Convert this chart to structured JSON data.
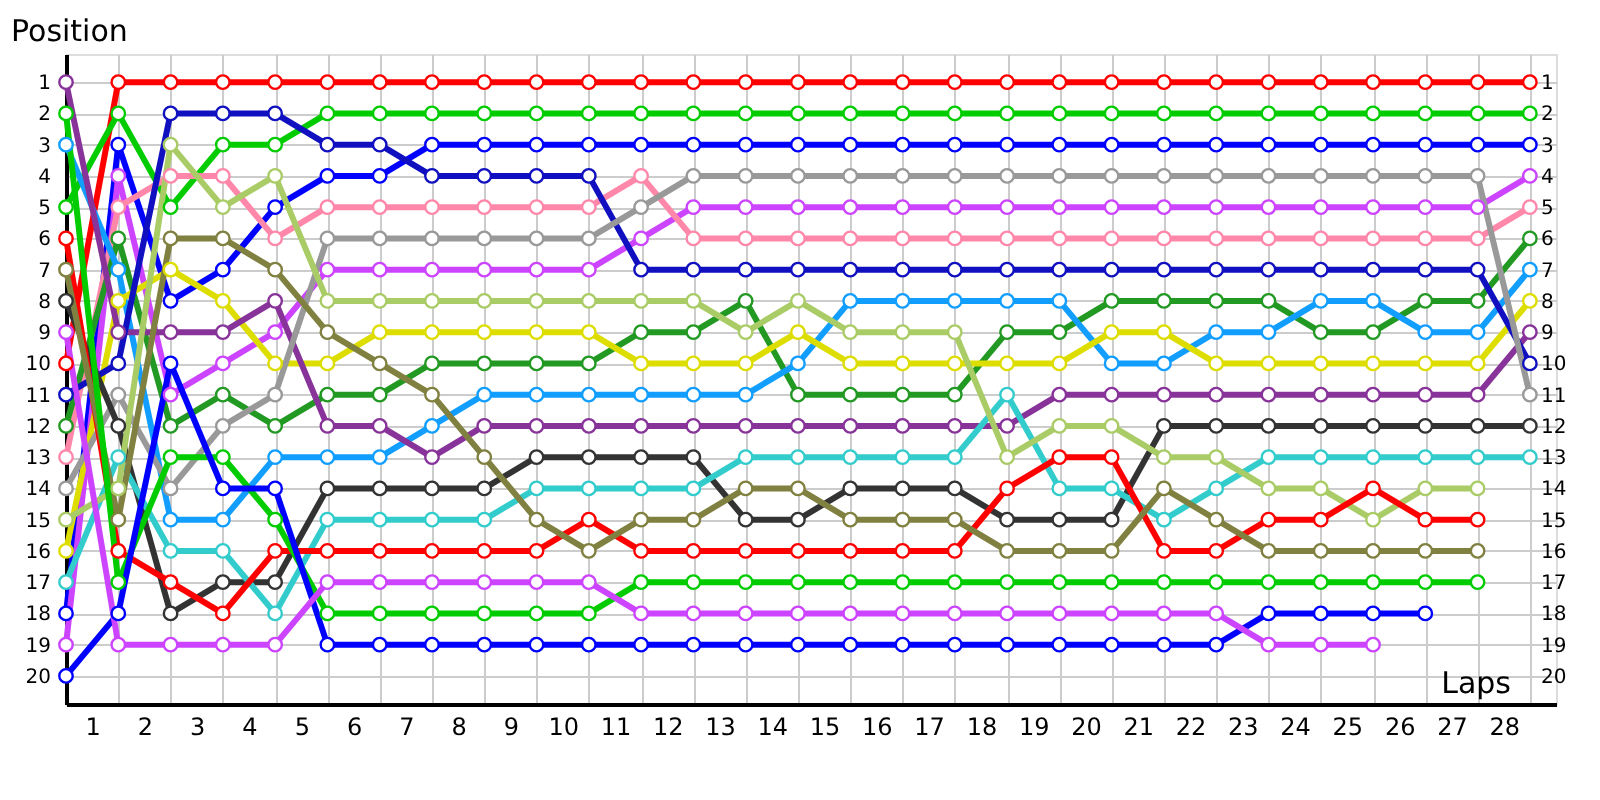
{
  "chart_data": {
    "type": "line",
    "xlabel": "Laps",
    "ylabel": "Position",
    "grid": true,
    "legend": false,
    "marker": "circle",
    "line_style": "solid",
    "x": [
      0,
      1,
      2,
      3,
      4,
      5,
      6,
      7,
      8,
      9,
      10,
      11,
      12,
      13,
      14,
      15,
      16,
      17,
      18,
      19,
      20,
      21,
      22,
      23,
      24,
      25,
      26,
      27,
      28
    ],
    "xlim": [
      0,
      28.5
    ],
    "ylim": [
      20.9,
      0.1
    ],
    "y2lim": [
      20.9,
      0.1
    ],
    "xticks": [
      {
        "value": 0,
        "label": null
      },
      {
        "value": 0.5,
        "label": "1"
      },
      {
        "value": 1,
        "label": null
      },
      {
        "value": 1.5,
        "label": "2"
      },
      {
        "value": 2,
        "label": null
      },
      {
        "value": 2.5,
        "label": "3"
      },
      {
        "value": 3,
        "label": null
      },
      {
        "value": 3.5,
        "label": "4"
      },
      {
        "value": 4,
        "label": null
      },
      {
        "value": 4.5,
        "label": "5"
      },
      {
        "value": 5,
        "label": null
      },
      {
        "value": 5.5,
        "label": "6"
      },
      {
        "value": 6,
        "label": null
      },
      {
        "value": 6.5,
        "label": "7"
      },
      {
        "value": 7,
        "label": null
      },
      {
        "value": 7.5,
        "label": "8"
      },
      {
        "value": 8,
        "label": null
      },
      {
        "value": 8.5,
        "label": "9"
      },
      {
        "value": 9,
        "label": null
      },
      {
        "value": 9.5,
        "label": "10"
      },
      {
        "value": 10,
        "label": null
      },
      {
        "value": 10.5,
        "label": "11"
      },
      {
        "value": 11,
        "label": null
      },
      {
        "value": 11.5,
        "label": "12"
      },
      {
        "value": 12,
        "label": null
      },
      {
        "value": 12.5,
        "label": "13"
      },
      {
        "value": 13,
        "label": null
      },
      {
        "value": 13.5,
        "label": "14"
      },
      {
        "value": 14,
        "label": null
      },
      {
        "value": 14.5,
        "label": "15"
      },
      {
        "value": 15,
        "label": null
      },
      {
        "value": 15.5,
        "label": "16"
      },
      {
        "value": 16,
        "label": null
      },
      {
        "value": 16.5,
        "label": "17"
      },
      {
        "value": 17,
        "label": null
      },
      {
        "value": 17.5,
        "label": "18"
      },
      {
        "value": 18,
        "label": null
      },
      {
        "value": 18.5,
        "label": "19"
      },
      {
        "value": 19,
        "label": null
      },
      {
        "value": 19.5,
        "label": "20"
      },
      {
        "value": 20,
        "label": null
      },
      {
        "value": 20.5,
        "label": "21"
      },
      {
        "value": 21,
        "label": null
      },
      {
        "value": 21.5,
        "label": "22"
      },
      {
        "value": 22,
        "label": null
      },
      {
        "value": 22.5,
        "label": "23"
      },
      {
        "value": 23,
        "label": null
      },
      {
        "value": 23.5,
        "label": "24"
      },
      {
        "value": 24,
        "label": null
      },
      {
        "value": 24.5,
        "label": "25"
      },
      {
        "value": 25,
        "label": null
      },
      {
        "value": 25.5,
        "label": "26"
      },
      {
        "value": 26,
        "label": null
      },
      {
        "value": 26.5,
        "label": "27"
      },
      {
        "value": 27,
        "label": null
      },
      {
        "value": 27.5,
        "label": "28"
      },
      {
        "value": 28,
        "label": null
      }
    ],
    "yticks": [
      1,
      2,
      3,
      4,
      5,
      6,
      7,
      8,
      9,
      10,
      11,
      12,
      13,
      14,
      15,
      16,
      17,
      18,
      19,
      20
    ],
    "y2ticks": [
      1,
      2,
      3,
      4,
      5,
      6,
      7,
      8,
      9,
      10,
      11,
      12,
      13,
      14,
      15,
      16,
      17,
      18,
      19,
      20
    ],
    "series": [
      {
        "color": "#ff0000",
        "values": [
          10,
          1,
          1,
          1,
          1,
          1,
          1,
          1,
          1,
          1,
          1,
          1,
          1,
          1,
          1,
          1,
          1,
          1,
          1,
          1,
          1,
          1,
          1,
          1,
          1,
          1,
          1,
          1,
          1
        ]
      },
      {
        "color": "#00cc00",
        "values": [
          5,
          2,
          5,
          3,
          3,
          2,
          2,
          2,
          2,
          2,
          2,
          2,
          2,
          2,
          2,
          2,
          2,
          2,
          2,
          2,
          2,
          2,
          2,
          2,
          2,
          2,
          2,
          2,
          2
        ]
      },
      {
        "color": "#0000ff",
        "values": [
          18,
          3,
          8,
          7,
          5,
          4,
          4,
          3,
          3,
          3,
          3,
          3,
          3,
          3,
          3,
          3,
          3,
          3,
          3,
          3,
          3,
          3,
          3,
          3,
          3,
          3,
          3,
          3,
          3
        ]
      },
      {
        "color": "#cc44ff",
        "values": [
          19,
          4,
          11,
          10,
          9,
          7,
          7,
          7,
          7,
          7,
          7,
          6,
          5,
          5,
          5,
          5,
          5,
          5,
          5,
          5,
          5,
          5,
          5,
          5,
          5,
          5,
          5,
          5,
          4
        ]
      },
      {
        "color": "#ff88aa",
        "values": [
          13,
          5,
          4,
          4,
          6,
          5,
          5,
          5,
          5,
          5,
          5,
          4,
          6,
          6,
          6,
          6,
          6,
          6,
          6,
          6,
          6,
          6,
          6,
          6,
          6,
          6,
          6,
          6,
          5
        ]
      },
      {
        "color": "#229922",
        "values": [
          12,
          6,
          12,
          11,
          12,
          11,
          11,
          10,
          10,
          10,
          10,
          9,
          9,
          8,
          11,
          11,
          11,
          11,
          9,
          9,
          8,
          8,
          8,
          8,
          9,
          9,
          8,
          8,
          6
        ]
      },
      {
        "color": "#119eff",
        "values": [
          3,
          7,
          15,
          15,
          13,
          13,
          13,
          12,
          11,
          11,
          11,
          11,
          11,
          11,
          10,
          8,
          8,
          8,
          8,
          8,
          10,
          10,
          9,
          9,
          8,
          8,
          9,
          9,
          7
        ]
      },
      {
        "color": "#dddd00",
        "values": [
          16,
          8,
          7,
          8,
          10,
          10,
          9,
          9,
          9,
          9,
          9,
          10,
          10,
          10,
          9,
          10,
          10,
          10,
          10,
          10,
          9,
          9,
          10,
          10,
          10,
          10,
          10,
          10,
          8
        ]
      },
      {
        "color": "#883399",
        "values": [
          1,
          9,
          9,
          9,
          8,
          12,
          12,
          13,
          12,
          12,
          12,
          12,
          12,
          12,
          12,
          12,
          12,
          12,
          12,
          11,
          11,
          11,
          11,
          11,
          11,
          11,
          11,
          11,
          9
        ]
      },
      {
        "color": "#1010c0",
        "values": [
          11,
          10,
          2,
          2,
          2,
          3,
          3,
          4,
          4,
          4,
          4,
          7,
          7,
          7,
          7,
          7,
          7,
          7,
          7,
          7,
          7,
          7,
          7,
          7,
          7,
          7,
          7,
          7,
          10
        ]
      },
      {
        "color": "#999999",
        "values": [
          14,
          11,
          14,
          12,
          11,
          6,
          6,
          6,
          6,
          6,
          6,
          5,
          4,
          4,
          4,
          4,
          4,
          4,
          4,
          4,
          4,
          4,
          4,
          4,
          4,
          4,
          4,
          4,
          11
        ]
      },
      {
        "color": "#333333",
        "values": [
          8,
          12,
          18,
          17,
          17,
          14,
          14,
          14,
          14,
          13,
          13,
          13,
          13,
          15,
          15,
          14,
          14,
          14,
          15,
          15,
          15,
          12,
          12,
          12,
          12,
          12,
          12,
          12,
          12
        ]
      },
      {
        "color": "#33cccc",
        "values": [
          17,
          13,
          16,
          16,
          18,
          15,
          15,
          15,
          15,
          14,
          14,
          14,
          14,
          13,
          13,
          13,
          13,
          13,
          11,
          14,
          14,
          15,
          14,
          13,
          13,
          13,
          13,
          13,
          13
        ]
      },
      {
        "color": "#aacc66",
        "values": [
          15,
          14,
          3,
          5,
          4,
          8,
          8,
          8,
          8,
          8,
          8,
          8,
          8,
          9,
          8,
          9,
          9,
          9,
          13,
          12,
          12,
          13,
          13,
          14,
          14,
          15,
          14,
          14,
          null
        ]
      },
      {
        "color": "#ff0000",
        "values": [
          6,
          16,
          17,
          18,
          16,
          16,
          16,
          16,
          16,
          16,
          15,
          16,
          16,
          16,
          16,
          16,
          16,
          16,
          14,
          13,
          13,
          16,
          16,
          15,
          15,
          14,
          15,
          15,
          null
        ]
      },
      {
        "color": "#808040",
        "values": [
          7,
          15,
          6,
          6,
          7,
          9,
          10,
          11,
          13,
          15,
          16,
          15,
          15,
          14,
          14,
          15,
          15,
          15,
          16,
          16,
          16,
          14,
          15,
          16,
          16,
          16,
          16,
          16,
          null
        ]
      },
      {
        "color": "#00cc00",
        "values": [
          2,
          17,
          13,
          13,
          15,
          18,
          18,
          18,
          18,
          18,
          18,
          17,
          17,
          17,
          17,
          17,
          17,
          17,
          17,
          17,
          17,
          17,
          17,
          17,
          17,
          17,
          17,
          17,
          null
        ]
      },
      {
        "color": "#0000ff",
        "values": [
          20,
          18,
          10,
          14,
          14,
          19,
          19,
          19,
          19,
          19,
          19,
          19,
          19,
          19,
          19,
          19,
          19,
          19,
          19,
          19,
          19,
          19,
          19,
          18,
          18,
          18,
          18,
          null,
          null
        ]
      },
      {
        "color": "#cc44ff",
        "values": [
          9,
          19,
          19,
          19,
          19,
          17,
          17,
          17,
          17,
          17,
          17,
          18,
          18,
          18,
          18,
          18,
          18,
          18,
          18,
          18,
          18,
          18,
          18,
          19,
          19,
          19,
          null,
          null,
          null
        ]
      }
    ]
  }
}
